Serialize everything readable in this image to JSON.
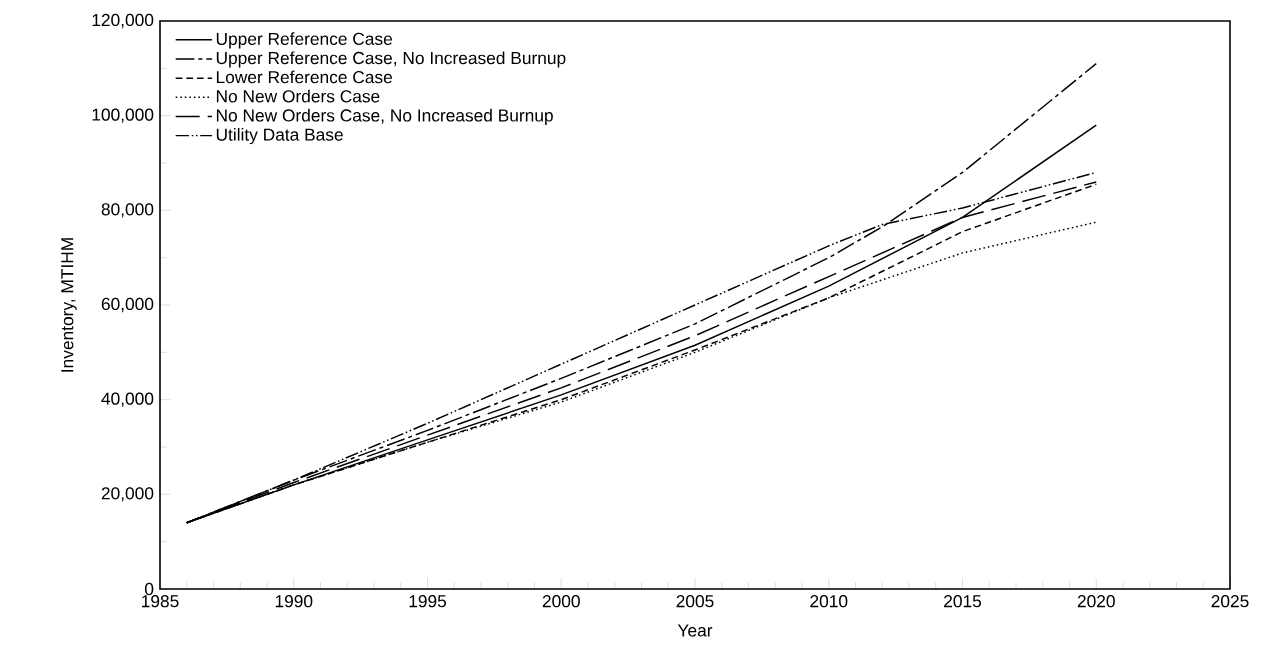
{
  "chart_data": {
    "type": "line",
    "xlabel": "Year",
    "ylabel": "Inventory, MTIHM",
    "xlim": [
      1985,
      2025
    ],
    "xticks": [
      1985,
      1990,
      1995,
      2000,
      2005,
      2010,
      2015,
      2020,
      2025
    ],
    "ylim": [
      0,
      120000
    ],
    "yticks": [
      {
        "value": 0,
        "label": "0"
      },
      {
        "value": 20000,
        "label": "20,000"
      },
      {
        "value": 40000,
        "label": "40,000"
      },
      {
        "value": 60000,
        "label": "60,000"
      },
      {
        "value": 80000,
        "label": "80,000"
      },
      {
        "value": 100000,
        "label": "100,000"
      },
      {
        "value": 120000,
        "label": "120,000"
      }
    ],
    "grid": false,
    "legend": "top left",
    "marker": "none",
    "x": [
      1986,
      1990,
      1995,
      2000,
      2005,
      2010,
      2015,
      2020
    ],
    "series": [
      {
        "name": "Upper Reference Case",
        "color": "#000000",
        "line_style": "solid",
        "values": [
          14000,
          22000,
          31500,
          41000,
          51500,
          64000,
          78500,
          98000
        ]
      },
      {
        "name": "Upper Reference Case, No Increased Burnup",
        "color": "#000000",
        "line_style": "dashed",
        "x": [
          1986,
          1990,
          1995,
          2000,
          2005,
          2010,
          2012,
          2015,
          2020
        ],
        "values": [
          14000,
          23000,
          33500,
          44500,
          56000,
          70000,
          76500,
          88000,
          111000
        ]
      },
      {
        "name": "Lower Reference Case",
        "color": "#000000",
        "line_style": "dashed",
        "values": [
          14000,
          22000,
          31000,
          40000,
          50500,
          61500,
          75500,
          85500
        ]
      },
      {
        "name": "No New Orders Case",
        "color": "#000000",
        "line_style": "dotted",
        "values": [
          14000,
          22000,
          31000,
          39500,
          50000,
          61500,
          71000,
          77500
        ]
      },
      {
        "name": "No New Orders Case, No Increased Burnup",
        "color": "#000000",
        "line_style": "dashed",
        "values": [
          14000,
          22500,
          32500,
          42500,
          53500,
          66000,
          78500,
          86000
        ]
      },
      {
        "name": "Utility Data Base",
        "color": "#000000",
        "line_style": "dashed",
        "x": [
          1986,
          1990,
          1995,
          2000,
          2005,
          2010,
          2012,
          2015,
          2020
        ],
        "values": [
          14000,
          23000,
          35000,
          47500,
          60000,
          72500,
          77000,
          80500,
          88000
        ]
      }
    ]
  }
}
